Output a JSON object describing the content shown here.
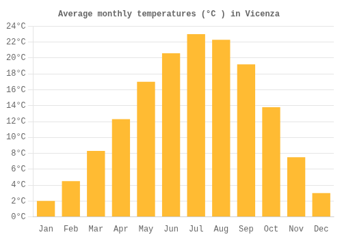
{
  "chart_data": {
    "type": "bar",
    "title": "Average monthly temperatures (°C ) in Vicenza",
    "categories": [
      "Jan",
      "Feb",
      "Mar",
      "Apr",
      "May",
      "Jun",
      "Jul",
      "Aug",
      "Sep",
      "Oct",
      "Nov",
      "Dec"
    ],
    "values": [
      2.0,
      4.5,
      8.3,
      12.3,
      17.0,
      20.6,
      23.0,
      22.3,
      19.2,
      13.8,
      7.5,
      3.0
    ],
    "color": "#FFBB33",
    "ylim": [
      0,
      24
    ],
    "yticks": [
      {
        "value": 0,
        "label": "0°C"
      },
      {
        "value": 2,
        "label": "2°C"
      },
      {
        "value": 4,
        "label": "4°C"
      },
      {
        "value": 6,
        "label": "6°C"
      },
      {
        "value": 8,
        "label": "8°C"
      },
      {
        "value": 10,
        "label": "10°C"
      },
      {
        "value": 12,
        "label": "12°C"
      },
      {
        "value": 14,
        "label": "14°C"
      },
      {
        "value": 16,
        "label": "16°C"
      },
      {
        "value": 18,
        "label": "18°C"
      },
      {
        "value": 20,
        "label": "20°C"
      },
      {
        "value": 22,
        "label": "22°C"
      },
      {
        "value": 24,
        "label": "24°C"
      }
    ],
    "grid": true
  }
}
